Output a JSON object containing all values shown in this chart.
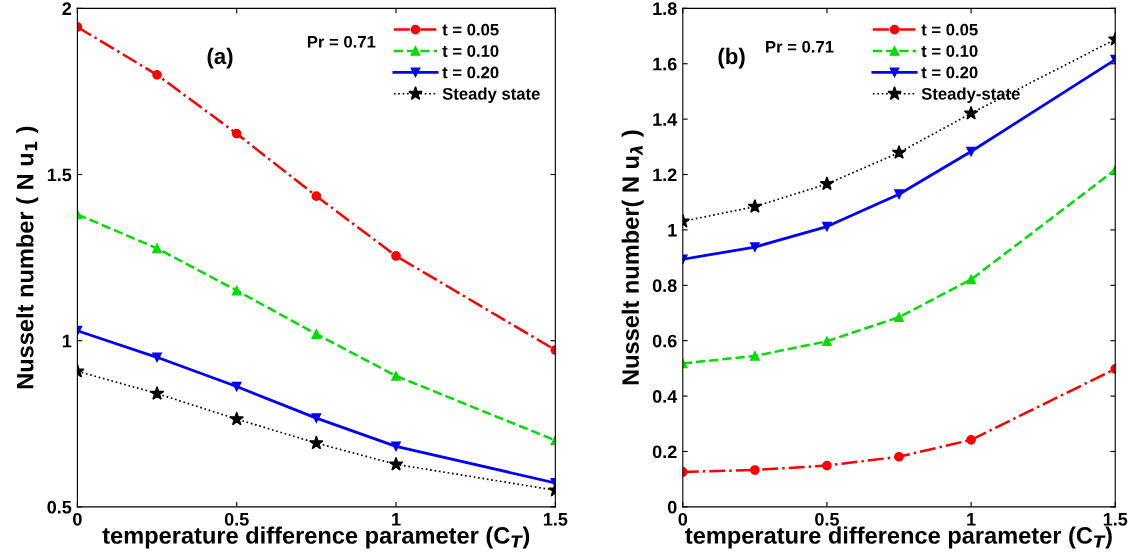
{
  "chart_data": [
    {
      "type": "line",
      "xlabel": "temperature difference parameter (C$_{T}$)",
      "ylabel": "Nusselt number ( N u$_{1}$ )",
      "annotations": [
        "(a)",
        "Pr = 0.71"
      ],
      "x": [
        0,
        0.25,
        0.5,
        0.75,
        1,
        1.5
      ],
      "xlim": [
        0,
        1.5
      ],
      "xticks": [
        0,
        0.5,
        1,
        1.5
      ],
      "ylim": [
        0.5,
        2
      ],
      "yticks": [
        0.5,
        1,
        1.5,
        2
      ],
      "grid": false,
      "legend": "top right",
      "series": [
        {
          "name": "t = 0.05",
          "color": "#ff0000",
          "marker": "circle",
          "line_style": "dashdot",
          "values": [
            1.944,
            1.8,
            1.623,
            1.435,
            1.255,
            0.972
          ]
        },
        {
          "name": "t = 0.10",
          "color": "#00dd00",
          "marker": "triangle",
          "line_style": "dashed",
          "values": [
            1.38,
            1.278,
            1.151,
            1.02,
            0.894,
            0.7
          ]
        },
        {
          "name": "t = 0.20",
          "color": "#0000ff",
          "marker": "triangle_down",
          "line_style": "solid",
          "values": [
            1.03,
            0.95,
            0.862,
            0.767,
            0.682,
            0.572
          ]
        },
        {
          "name": "Steady state",
          "color": "#000000",
          "marker": "star",
          "line_style": "dotted",
          "values": [
            0.908,
            0.841,
            0.764,
            0.692,
            0.628,
            0.55
          ]
        }
      ]
    },
    {
      "type": "line",
      "xlabel": "temperature difference parameter (C$_{T}$)",
      "ylabel": "Nusselt number( N u$_{λ}$ )",
      "annotations": [
        "(b)",
        "Pr = 0.71"
      ],
      "x": [
        0,
        0.25,
        0.5,
        0.75,
        1,
        1.5
      ],
      "xlim": [
        0,
        1.5
      ],
      "xticks": [
        0,
        0.5,
        1,
        1.5
      ],
      "ylim": [
        0,
        1.8
      ],
      "yticks": [
        0,
        0.2,
        0.4,
        0.6,
        0.8,
        1,
        1.2,
        1.4,
        1.6,
        1.8
      ],
      "grid": false,
      "legend": "top",
      "series": [
        {
          "name": "t = 0.05",
          "color": "#ff0000",
          "marker": "circle",
          "line_style": "dashdot",
          "values": [
            0.126,
            0.133,
            0.149,
            0.181,
            0.242,
            0.498
          ]
        },
        {
          "name": "t = 0.10",
          "color": "#00dd00",
          "marker": "triangle",
          "line_style": "dashed",
          "values": [
            0.518,
            0.545,
            0.598,
            0.685,
            0.821,
            1.217
          ]
        },
        {
          "name": "t = 0.20",
          "color": "#0000ff",
          "marker": "triangle_down",
          "line_style": "solid",
          "values": [
            0.894,
            0.938,
            1.012,
            1.129,
            1.283,
            1.615
          ]
        },
        {
          "name": "Steady-state",
          "color": "#000000",
          "marker": "star",
          "line_style": "dotted",
          "values": [
            1.031,
            1.084,
            1.166,
            1.279,
            1.421,
            1.688
          ]
        }
      ]
    }
  ]
}
